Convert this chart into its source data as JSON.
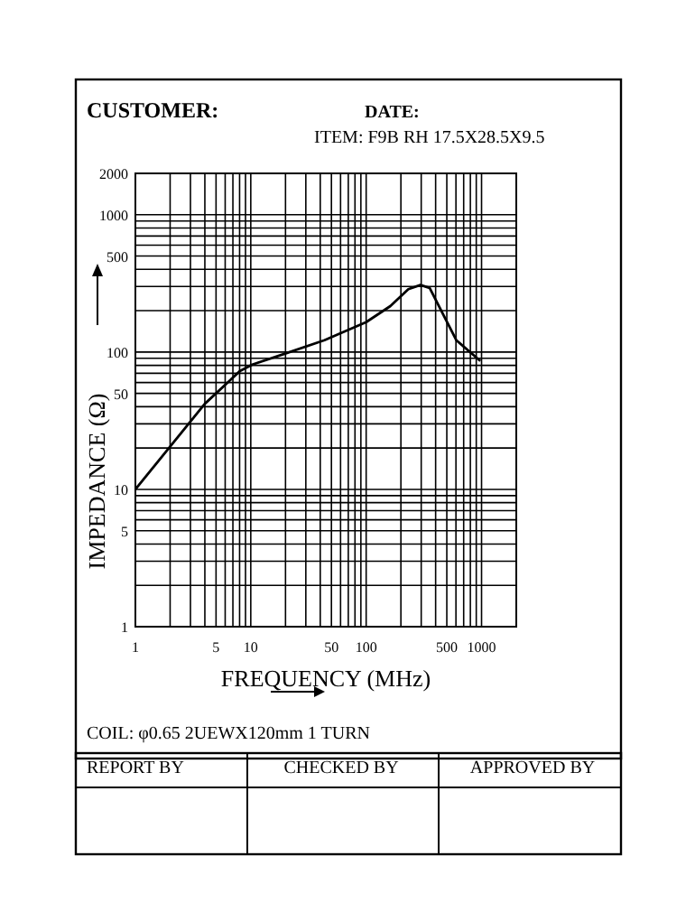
{
  "chart_data": {
    "type": "line",
    "xlabel": "FREQUENCY (MHz)",
    "ylabel": "IMPEDANCE (Ω)",
    "log": "xy",
    "grid": true,
    "marker": "none",
    "line_style": "solid",
    "x": [
      1,
      4,
      8.1,
      10.3,
      18.8,
      43.5,
      100,
      162,
      232,
      295,
      355,
      604,
      977
    ],
    "series": [
      {
        "color": "#000000",
        "values": [
          10,
          42,
          73,
          81,
          96,
          122,
          165,
          216,
          287,
          308,
          293,
          122,
          86
        ]
      }
    ],
    "xlim": [
      1,
      2000
    ],
    "xticks": [
      1,
      5,
      10,
      50,
      100,
      500,
      1000
    ],
    "ylim": [
      1,
      2000
    ],
    "yticks": [
      1,
      5,
      10,
      50,
      100,
      500,
      1000,
      2000
    ],
    "annotations": [
      "CUSTOMER:",
      "DATE:",
      "ITEM:  F9B RH 17.5X28.5X9.5",
      "COIL:  φ0.65 2UEWX120mm 1 TURN",
      "REPORT BY",
      "CHECKED BY",
      "APPROVED BY"
    ]
  }
}
